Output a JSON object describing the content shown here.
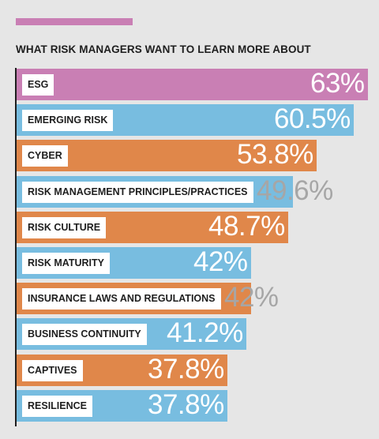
{
  "chart_data": {
    "type": "bar",
    "orientation": "horizontal",
    "title": "WHAT RISK MANAGERS WANT TO LEARN MORE ABOUT",
    "categories": [
      "ESG",
      "EMERGING RISK",
      "CYBER",
      "RISK MANAGEMENT PRINCIPLES/PRACTICES",
      "RISK CULTURE",
      "RISK MATURITY",
      "INSURANCE LAWS AND REGULATIONS",
      "BUSINESS CONTINUITY",
      "CAPTIVES",
      "RESILIENCE"
    ],
    "values": [
      63,
      60.5,
      53.8,
      49.6,
      48.7,
      42,
      42,
      41.2,
      37.8,
      37.8
    ],
    "value_labels": [
      "63%",
      "60.5%",
      "53.8%",
      "49.6%",
      "48.7%",
      "42%",
      "42%",
      "41.2%",
      "37.8%",
      "37.8%"
    ],
    "bar_colors": [
      "#c97fb4",
      "#78bde0",
      "#e0874a",
      "#78bde0",
      "#e0874a",
      "#78bde0",
      "#e0874a",
      "#78bde0",
      "#e0874a",
      "#78bde0"
    ],
    "value_label_colors": [
      "#ffffff",
      "#ffffff",
      "#ffffff",
      "#a6a6a6",
      "#ffffff",
      "#ffffff",
      "#a6a6a6",
      "#ffffff",
      "#ffffff",
      "#ffffff"
    ],
    "xlim": [
      0,
      63
    ],
    "grid": false
  },
  "colors": {
    "accent": "#c97fb4",
    "background": "#e6e6e6",
    "text": "#1e1e1e"
  }
}
